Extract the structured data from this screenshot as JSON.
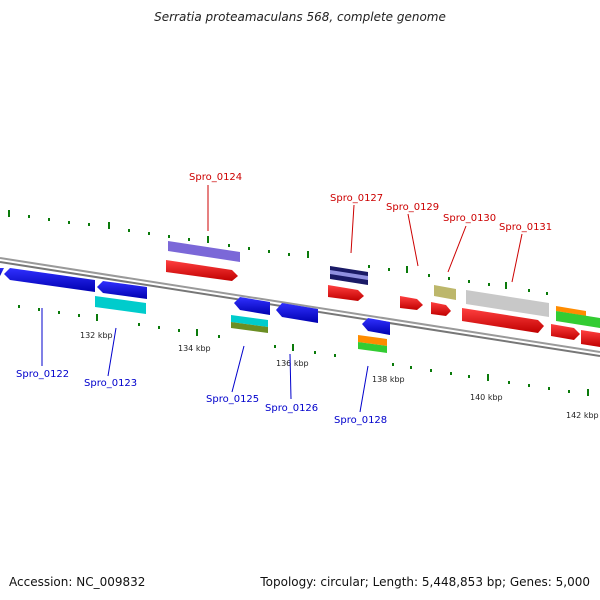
{
  "title": "Serratia proteamaculans 568, complete genome",
  "footer": {
    "accession": "Accession: NC_009832",
    "stats": "Topology: circular; Length: 5,448,853 bp; Genes: 5,000"
  },
  "colors": {
    "forward_label": "#cc0000",
    "reverse_label": "#0000cc",
    "tick": "#007700",
    "backbone": "#888888"
  },
  "scale_labels": [
    "132 kbp",
    "134 kbp",
    "136 kbp",
    "138 kbp",
    "140 kbp",
    "142 kbp"
  ],
  "forward_genes": [
    {
      "label": "Spro_0124",
      "color": "#7b68d8"
    },
    {
      "label": "Spro_0127",
      "color": "#1a1a66"
    },
    {
      "label": "Spro_0129",
      "color": ""
    },
    {
      "label": "Spro_0130",
      "color": "#bdb76b"
    },
    {
      "label": "Spro_0131",
      "color": "#c0c0c0"
    }
  ],
  "reverse_genes": [
    {
      "label": "Spro_0122",
      "color": "#0000ee"
    },
    {
      "label": "Spro_0123",
      "color": "#0000ee"
    },
    {
      "label": "Spro_0125",
      "color": "#0000ee"
    },
    {
      "label": "Spro_0126",
      "color": "#0000ee"
    },
    {
      "label": "Spro_0128",
      "color": "#0000ee"
    }
  ]
}
